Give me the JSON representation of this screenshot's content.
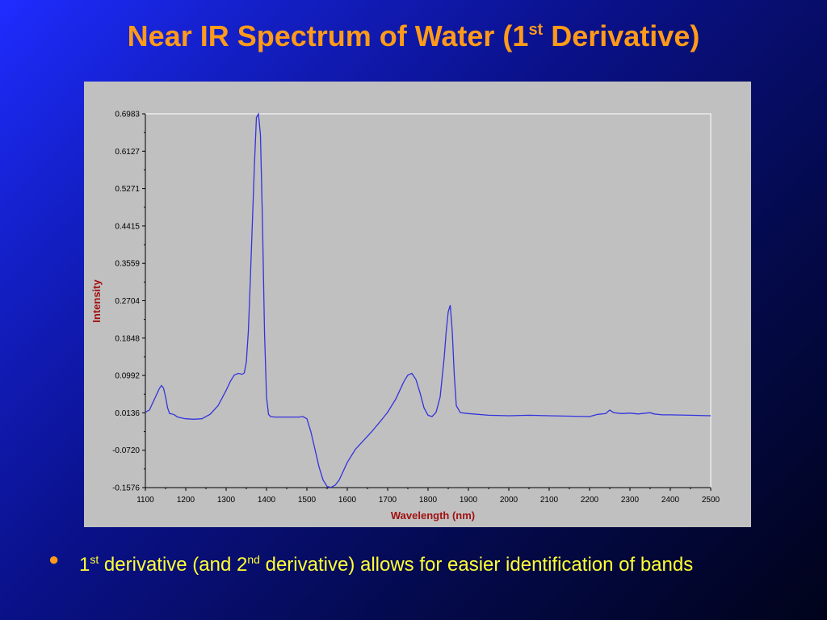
{
  "slide": {
    "title_main": "Near IR Spectrum of Water (1",
    "title_sup": "st",
    "title_end": " Derivative)",
    "bullet": {
      "t1": "1",
      "s1": "st",
      "t2": " derivative (and 2",
      "s2": "nd",
      "t3": " derivative) allows for easier identification of bands"
    }
  },
  "chart_data": {
    "type": "line",
    "xlabel": "Wavelength (nm)",
    "ylabel": "Intensity",
    "xlim": [
      1100,
      2500
    ],
    "ylim": [
      -0.1576,
      0.6983
    ],
    "x_ticks": [
      "1100",
      "1200",
      "1300",
      "1400",
      "1500",
      "1600",
      "1700",
      "1800",
      "1900",
      "2000",
      "2100",
      "2200",
      "2300",
      "2400",
      "2500"
    ],
    "y_ticks": [
      "0.6983",
      "0.6127",
      "0.5271",
      "0.4415",
      "0.3559",
      "0.2704",
      "0.1848",
      "0.0992",
      "0.0136",
      "-0.0720",
      "-0.1576"
    ],
    "series": [
      {
        "color": "#3333dd",
        "x": [
          1100,
          1110,
          1120,
          1130,
          1135,
          1140,
          1145,
          1150,
          1155,
          1160,
          1170,
          1180,
          1190,
          1200,
          1220,
          1240,
          1260,
          1280,
          1300,
          1310,
          1320,
          1330,
          1340,
          1345,
          1350,
          1355,
          1360,
          1365,
          1370,
          1375,
          1380,
          1385,
          1390,
          1395,
          1400,
          1405,
          1410,
          1420,
          1440,
          1460,
          1480,
          1490,
          1500,
          1510,
          1520,
          1530,
          1540,
          1550,
          1560,
          1570,
          1580,
          1600,
          1620,
          1640,
          1660,
          1680,
          1700,
          1720,
          1740,
          1750,
          1760,
          1770,
          1780,
          1790,
          1800,
          1810,
          1820,
          1830,
          1840,
          1845,
          1850,
          1855,
          1860,
          1865,
          1870,
          1880,
          1900,
          1950,
          2000,
          2050,
          2100,
          2150,
          2200,
          2220,
          2240,
          2250,
          2260,
          2280,
          2300,
          2320,
          2340,
          2350,
          2360,
          2380,
          2400,
          2450,
          2500
        ],
        "y": [
          0.015,
          0.02,
          0.04,
          0.06,
          0.07,
          0.076,
          0.07,
          0.05,
          0.025,
          0.012,
          0.01,
          0.004,
          0.002,
          0.0,
          -0.001,
          0.0,
          0.01,
          0.03,
          0.065,
          0.085,
          0.1,
          0.104,
          0.102,
          0.105,
          0.13,
          0.2,
          0.32,
          0.45,
          0.58,
          0.69,
          0.698,
          0.65,
          0.45,
          0.2,
          0.05,
          0.01,
          0.005,
          0.004,
          0.004,
          0.004,
          0.004,
          0.005,
          0.0,
          -0.03,
          -0.07,
          -0.11,
          -0.14,
          -0.155,
          -0.157,
          -0.152,
          -0.14,
          -0.1,
          -0.07,
          -0.05,
          -0.03,
          -0.008,
          0.015,
          0.045,
          0.085,
          0.1,
          0.104,
          0.09,
          0.06,
          0.025,
          0.008,
          0.005,
          0.015,
          0.05,
          0.14,
          0.2,
          0.245,
          0.26,
          0.2,
          0.1,
          0.03,
          0.014,
          0.012,
          0.008,
          0.007,
          0.008,
          0.007,
          0.006,
          0.005,
          0.01,
          0.012,
          0.02,
          0.014,
          0.012,
          0.013,
          0.011,
          0.013,
          0.014,
          0.011,
          0.009,
          0.009,
          0.008,
          0.007
        ]
      }
    ]
  }
}
